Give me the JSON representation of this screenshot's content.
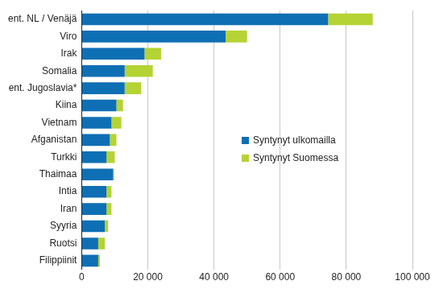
{
  "chart_data": {
    "type": "bar",
    "orientation": "horizontal",
    "stacked": true,
    "categories": [
      "ent. NL / Venäjä",
      "Viro",
      "Irak",
      "Somalia",
      "ent. Jugoslavia*",
      "Kiina",
      "Vietnam",
      "Afganistan",
      "Turkki",
      "Thaimaa",
      "Intia",
      "Iran",
      "Syyria",
      "Ruotsi",
      "Filippiinit"
    ],
    "series": [
      {
        "name": "Syntynyt ulkomailla",
        "color": "#0f6fb4",
        "values": [
          74500,
          43500,
          19000,
          13000,
          13000,
          10500,
          9000,
          8500,
          7500,
          9500,
          7500,
          7500,
          7000,
          5000,
          5000
        ]
      },
      {
        "name": "Syntynyt Suomessa",
        "color": "#b5d334",
        "values": [
          13500,
          6500,
          5000,
          8500,
          5000,
          2000,
          3000,
          2000,
          2500,
          300,
          1500,
          1500,
          1000,
          2000,
          500
        ]
      }
    ],
    "xlim": [
      0,
      100000
    ],
    "xticks": [
      0,
      {
        "value": 20000,
        "label": "20 000"
      },
      {
        "value": 40000,
        "label": "40 000"
      },
      {
        "value": 60000,
        "label": "60 000"
      },
      {
        "value": 80000,
        "label": "80 000"
      },
      {
        "value": 100000,
        "label": "100 000"
      }
    ],
    "grid": true,
    "legend": "right"
  }
}
